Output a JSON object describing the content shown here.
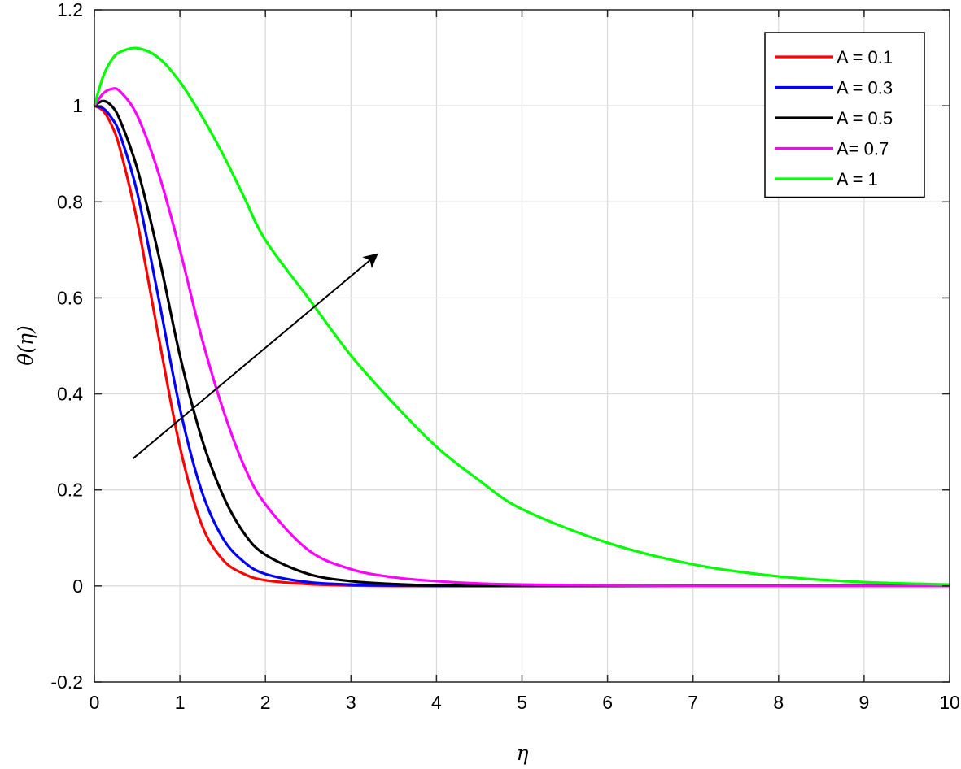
{
  "chart_data": {
    "type": "line",
    "title": "",
    "xlabel": "η",
    "ylabel": "θ(η)",
    "xlim": [
      0,
      10
    ],
    "ylim": [
      -0.2,
      1.2
    ],
    "xticks": [
      "0",
      "1",
      "2",
      "3",
      "4",
      "5",
      "6",
      "7",
      "8",
      "9",
      "10"
    ],
    "yticks": [
      "-0.2",
      "0",
      "0.2",
      "0.4",
      "0.6",
      "0.8",
      "1",
      "1.2"
    ],
    "grid": true,
    "legend_position": "top-right",
    "x": [
      0,
      0.1,
      0.2,
      0.3,
      0.5,
      0.75,
      1,
      1.25,
      1.5,
      1.75,
      2,
      2.5,
      3,
      3.5,
      4,
      4.5,
      5,
      6,
      7,
      8,
      9,
      10
    ],
    "series": [
      {
        "name": "A = 0.1",
        "color": "#ff0000",
        "values": [
          1,
          0.99,
          0.96,
          0.91,
          0.76,
          0.52,
          0.29,
          0.13,
          0.055,
          0.025,
          0.012,
          0.004,
          0.001,
          0,
          0,
          0,
          0,
          0,
          0,
          0,
          0,
          0
        ]
      },
      {
        "name": "A = 0.3",
        "color": "#0000ff",
        "values": [
          1,
          0.995,
          0.975,
          0.94,
          0.82,
          0.6,
          0.37,
          0.2,
          0.1,
          0.05,
          0.025,
          0.008,
          0.003,
          0.001,
          0,
          0,
          0,
          0,
          0,
          0,
          0,
          0
        ]
      },
      {
        "name": "A = 0.5",
        "color": "#000000",
        "values": [
          1,
          1.01,
          1.0,
          0.97,
          0.87,
          0.69,
          0.48,
          0.31,
          0.19,
          0.11,
          0.065,
          0.025,
          0.01,
          0.004,
          0.001,
          0,
          0,
          0,
          0,
          0,
          0,
          0
        ]
      },
      {
        "name": "A= 0.7",
        "color": "#ff00ff",
        "values": [
          1,
          1.025,
          1.035,
          1.03,
          0.98,
          0.86,
          0.7,
          0.52,
          0.37,
          0.25,
          0.17,
          0.075,
          0.035,
          0.018,
          0.01,
          0.005,
          0.003,
          0.001,
          0,
          0,
          0,
          0
        ]
      },
      {
        "name": "A = 1",
        "color": "#00ff00",
        "values": [
          1,
          1.06,
          1.095,
          1.112,
          1.12,
          1.1,
          1.05,
          0.98,
          0.9,
          0.81,
          0.72,
          0.6,
          0.48,
          0.38,
          0.29,
          0.22,
          0.16,
          0.09,
          0.045,
          0.02,
          0.008,
          0.003
        ]
      }
    ],
    "annotations": [
      {
        "type": "arrow",
        "from": [
          0.45,
          0.265
        ],
        "to": [
          3.3,
          0.69
        ]
      }
    ]
  }
}
